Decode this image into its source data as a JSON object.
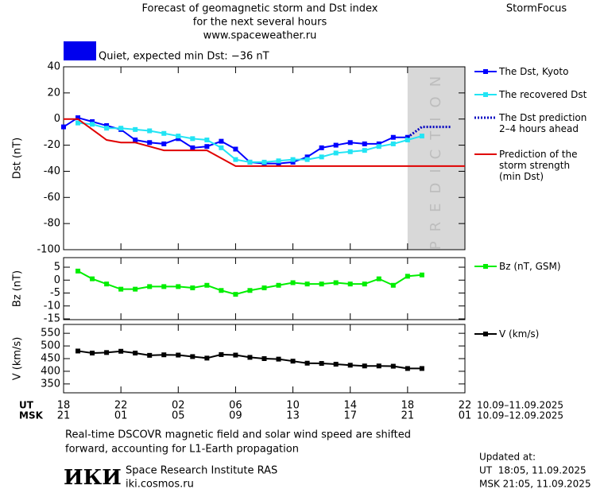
{
  "header": {
    "title_lines": [
      "Forecast of geomagnetic storm and Dst index",
      "for the next several hours",
      "www.spaceweather.ru"
    ],
    "brand": "StormFocus",
    "status": "Quiet, expected min Dst: −36 nT"
  },
  "chart_data": [
    {
      "type": "line",
      "ylabel": "Dst (nT)",
      "xlim": [
        0,
        28
      ],
      "ylim": [
        -100,
        40
      ],
      "yticks": [
        40,
        20,
        0,
        -20,
        -40,
        -60,
        -80,
        -100
      ],
      "prediction_region": {
        "start": 24,
        "label": "PREDICTION"
      },
      "series": [
        {
          "name": "The Dst, Kyoto",
          "color": "#0000ff",
          "marker": "square",
          "dash": false,
          "x": [
            0,
            1,
            2,
            3,
            4,
            5,
            6,
            7,
            8,
            9,
            10,
            11,
            12,
            13,
            14,
            15,
            16,
            17,
            18,
            19,
            20,
            21,
            22,
            23,
            24
          ],
          "values": [
            -6,
            1,
            -2,
            -5,
            -8,
            -16,
            -18,
            -19,
            -15,
            -22,
            -21,
            -17,
            -23,
            -33,
            -34,
            -34,
            -33,
            -29,
            -22,
            -20,
            -18,
            -19,
            -19,
            -14,
            -14
          ]
        },
        {
          "name": "The recovered Dst",
          "color": "#22e4f4",
          "marker": "square",
          "dash": false,
          "x": [
            1,
            2,
            3,
            4,
            5,
            6,
            7,
            8,
            9,
            10,
            11,
            12,
            13,
            14,
            15,
            16,
            17,
            18,
            19,
            20,
            21,
            22,
            23,
            24,
            25
          ],
          "values": [
            -3,
            -4,
            -7,
            -7,
            -8,
            -9,
            -11,
            -13,
            -15,
            -16,
            -22,
            -31,
            -33,
            -33,
            -32,
            -31,
            -31,
            -29,
            -26,
            -25,
            -24,
            -21,
            -19,
            -16,
            -13
          ]
        },
        {
          "name": "The Dst prediction\n2–4 hours ahead",
          "color": "#0000c0",
          "marker": "none",
          "dash": true,
          "x": [
            24,
            25,
            26,
            27
          ],
          "values": [
            -14,
            -6,
            -6,
            -6
          ]
        },
        {
          "name": "Prediction of the\nstorm strength\n(min Dst)",
          "color": "#e00000",
          "marker": "none",
          "dash": false,
          "x": [
            0,
            1,
            3,
            4,
            5,
            6,
            7,
            10,
            11,
            12,
            28
          ],
          "values": [
            0,
            0,
            -16,
            -18,
            -18,
            -21,
            -24,
            -24,
            -30,
            -36,
            -36
          ]
        }
      ]
    },
    {
      "type": "line",
      "ylabel": "Bz (nT)",
      "xlim": [
        0,
        28
      ],
      "ylim": [
        -15.3,
        8.7
      ],
      "yticks": [
        5,
        0,
        -5,
        -10,
        -15
      ],
      "series": [
        {
          "name": "Bz (nT, GSM)",
          "color": "#00ee00",
          "marker": "square",
          "dash": false,
          "x": [
            1,
            2,
            3,
            4,
            5,
            6,
            7,
            8,
            9,
            10,
            11,
            12,
            13,
            14,
            15,
            16,
            17,
            18,
            19,
            20,
            21,
            22,
            23,
            24,
            25
          ],
          "values": [
            3.5,
            0.5,
            -1.5,
            -3.5,
            -3.5,
            -2.5,
            -2.5,
            -2.5,
            -3,
            -2,
            -4,
            -5.5,
            -4,
            -3,
            -2,
            -1,
            -1.5,
            -1.5,
            -1,
            -1.5,
            -1.5,
            0.5,
            -2,
            1.5,
            2
          ]
        }
      ]
    },
    {
      "type": "line",
      "ylabel": "V (km/s)",
      "xlim": [
        0,
        28
      ],
      "ylim": [
        315,
        585
      ],
      "yticks": [
        550,
        500,
        450,
        400,
        350
      ],
      "xticks": [
        {
          "value": 0,
          "label": "18"
        },
        {
          "value": 4,
          "label": "22"
        },
        {
          "value": 8,
          "label": "02"
        },
        {
          "value": 12,
          "label": "06"
        },
        {
          "value": 16,
          "label": "10"
        },
        {
          "value": 20,
          "label": "14"
        },
        {
          "value": 24,
          "label": "18"
        },
        {
          "value": 28,
          "label": "22"
        }
      ],
      "xticks_msk": [
        {
          "value": 0,
          "label": "21"
        },
        {
          "value": 4,
          "label": "01"
        },
        {
          "value": 8,
          "label": "05"
        },
        {
          "value": 12,
          "label": "09"
        },
        {
          "value": 16,
          "label": "13"
        },
        {
          "value": 20,
          "label": "17"
        },
        {
          "value": 24,
          "label": "21"
        },
        {
          "value": 28,
          "label": "01"
        }
      ],
      "xaxis_ut": "UT",
      "xaxis_msk": "MSK",
      "date_range_ut": "10.09–11.09.2025",
      "date_range_msk": "10.09–12.09.2025",
      "series": [
        {
          "name": "V (km/s)",
          "color": "#000000",
          "marker": "square",
          "dash": false,
          "x": [
            1,
            2,
            3,
            4,
            5,
            6,
            7,
            8,
            9,
            10,
            11,
            12,
            13,
            14,
            15,
            16,
            17,
            18,
            19,
            20,
            21,
            22,
            23,
            24,
            25
          ],
          "values": [
            480,
            472,
            474,
            479,
            472,
            463,
            465,
            464,
            458,
            452,
            466,
            464,
            455,
            450,
            448,
            440,
            432,
            431,
            428,
            424,
            421,
            421,
            420,
            411,
            411
          ]
        }
      ]
    }
  ],
  "footer": {
    "note_lines": [
      "Real-time DSCOVR magnetic field and solar wind speed are shifted",
      "forward, accounting for L1-Earth propagation"
    ],
    "logo": "ИКИ",
    "institute": "Space Research Institute RAS",
    "url": "iki.cosmos.ru",
    "updated_label": "Updated at:",
    "updated_ut": "UT  18:05, 11.09.2025",
    "updated_msk": "MSK 21:05, 11.09.2025"
  }
}
